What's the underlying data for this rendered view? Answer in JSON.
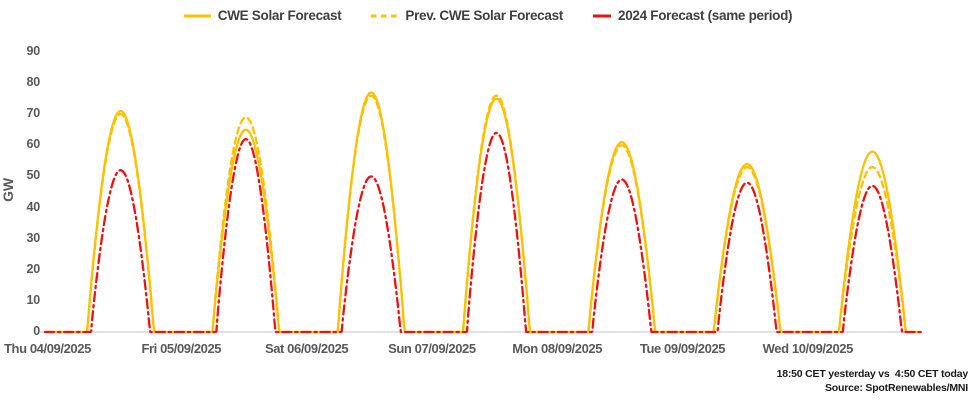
{
  "colors": {
    "cwe_solar": "#FFC000",
    "forecast_2024": "#EE1111",
    "axis_text": "#595959",
    "legend_text": "#404040",
    "axis_line": "#D9D9D9",
    "background": "#FFFFFF"
  },
  "y_axis": {
    "title": "GW"
  },
  "footnote": {
    "line1": "18:50 CET yesterday vs  4:50 CET today",
    "line2": "Source: SpotRenewables/MNI"
  },
  "chart_data": {
    "type": "line",
    "title": "",
    "xlabel": "",
    "ylabel": "GW",
    "ylim": [
      0,
      90
    ],
    "yticks": [
      0,
      10,
      20,
      30,
      40,
      50,
      60,
      70,
      80,
      90
    ],
    "grid": false,
    "legend_position": "top",
    "categories": [
      "Thu 04/09/2025",
      "Fri 05/09/2025",
      "Sat 06/09/2025",
      "Sun 07/09/2025",
      "Mon 08/09/2025",
      "Tue 09/09/2025",
      "Wed 10/09/2025"
    ],
    "x_unit": "day (midnight-to-midnight, intraday solar bell curve, 0 GW at night)",
    "night_value_gw": 0,
    "series": [
      {
        "name": "CWE Solar Forecast",
        "color": "#FFC000",
        "line_style": "solid",
        "daily_peak_gw": [
          71,
          65,
          77,
          75,
          61,
          54,
          58
        ],
        "sunrise_frac": 0.25,
        "sunset_frac": 0.78
      },
      {
        "name": "Prev. CWE Solar Forecast",
        "color": "#FFC000",
        "line_style": "dashed",
        "daily_peak_gw": [
          70,
          69,
          76,
          76,
          60,
          53,
          53
        ],
        "sunrise_frac": 0.25,
        "sunset_frac": 0.78
      },
      {
        "name": "2024 Forecast (same period)",
        "color": "#EE1111",
        "line_style": "dashdot",
        "daily_peak_gw": [
          52,
          62,
          50,
          64,
          49,
          48,
          47
        ],
        "sunrise_frac": 0.28,
        "sunset_frac": 0.75
      }
    ]
  }
}
